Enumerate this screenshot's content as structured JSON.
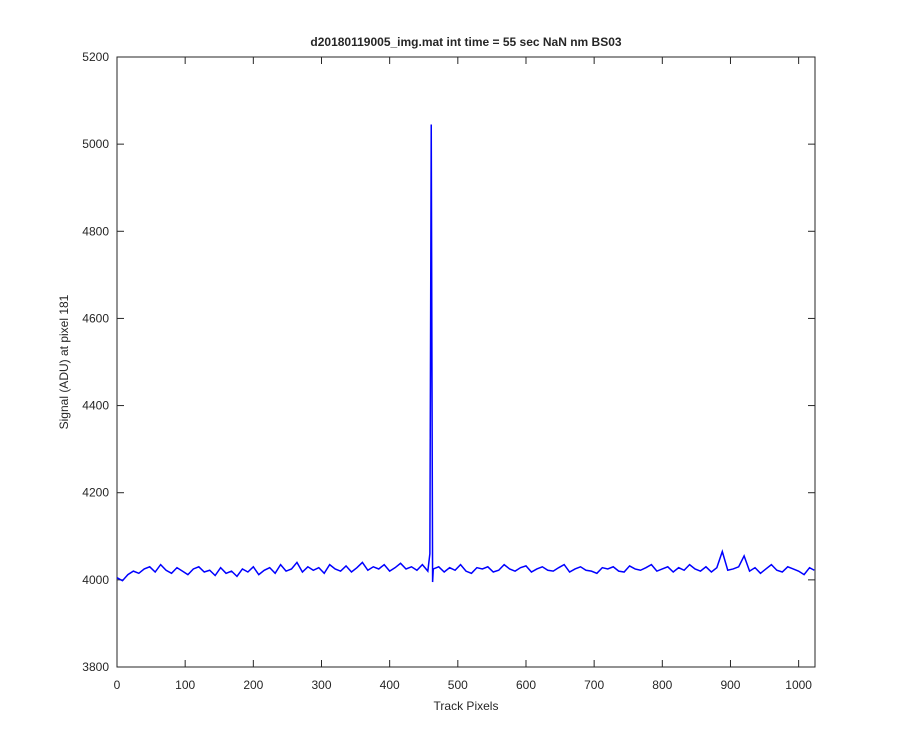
{
  "chart_data": {
    "type": "line",
    "title": "d20180119005_img.mat int time = 55 sec  NaN nm BS03",
    "xlabel": "Track Pixels",
    "ylabel": "Signal (ADU) at pixel 181",
    "xlim": [
      0,
      1024
    ],
    "ylim": [
      3800,
      5200
    ],
    "xticks": [
      0,
      100,
      200,
      300,
      400,
      500,
      600,
      700,
      800,
      900,
      1000
    ],
    "yticks": [
      3800,
      4000,
      4200,
      4400,
      4600,
      4800,
      5000,
      5200
    ],
    "color": "#0000ff",
    "x": [
      0,
      8,
      16,
      24,
      32,
      40,
      48,
      56,
      64,
      72,
      80,
      88,
      96,
      104,
      112,
      120,
      128,
      136,
      144,
      152,
      160,
      168,
      176,
      184,
      192,
      200,
      208,
      216,
      224,
      232,
      240,
      248,
      256,
      264,
      272,
      280,
      288,
      296,
      304,
      312,
      320,
      328,
      336,
      344,
      352,
      360,
      368,
      376,
      384,
      392,
      400,
      408,
      416,
      424,
      432,
      440,
      448,
      456,
      459,
      461,
      463,
      464,
      472,
      480,
      488,
      496,
      504,
      512,
      520,
      528,
      536,
      544,
      552,
      560,
      568,
      576,
      584,
      592,
      600,
      608,
      616,
      624,
      632,
      640,
      648,
      656,
      664,
      672,
      680,
      688,
      696,
      704,
      712,
      720,
      728,
      736,
      744,
      752,
      760,
      768,
      776,
      784,
      792,
      800,
      808,
      816,
      824,
      832,
      840,
      848,
      856,
      864,
      872,
      880,
      888,
      896,
      904,
      912,
      920,
      928,
      936,
      944,
      952,
      960,
      968,
      976,
      984,
      992,
      1000,
      1008,
      1016,
      1023
    ],
    "values": [
      4005,
      3998,
      4012,
      4020,
      4015,
      4025,
      4030,
      4018,
      4035,
      4022,
      4015,
      4028,
      4020,
      4012,
      4025,
      4030,
      4018,
      4022,
      4010,
      4028,
      4015,
      4020,
      4008,
      4025,
      4018,
      4030,
      4012,
      4022,
      4028,
      4015,
      4035,
      4020,
      4025,
      4040,
      4018,
      4030,
      4022,
      4028,
      4015,
      4035,
      4025,
      4020,
      4032,
      4018,
      4028,
      4040,
      4022,
      4030,
      4025,
      4035,
      4020,
      4028,
      4038,
      4025,
      4030,
      4022,
      4035,
      4020,
      4060,
      5045,
      3995,
      4025,
      4030,
      4018,
      4028,
      4022,
      4035,
      4020,
      4015,
      4028,
      4025,
      4030,
      4018,
      4022,
      4035,
      4025,
      4020,
      4028,
      4032,
      4018,
      4025,
      4030,
      4022,
      4020,
      4028,
      4035,
      4018,
      4025,
      4030,
      4022,
      4020,
      4015,
      4028,
      4025,
      4030,
      4020,
      4018,
      4032,
      4025,
      4022,
      4028,
      4035,
      4020,
      4025,
      4030,
      4018,
      4028,
      4022,
      4035,
      4025,
      4020,
      4030,
      4018,
      4028,
      4065,
      4022,
      4025,
      4030,
      4055,
      4020,
      4028,
      4015,
      4025,
      4035,
      4022,
      4018,
      4030,
      4025,
      4020,
      4012,
      4028,
      4022
    ]
  }
}
